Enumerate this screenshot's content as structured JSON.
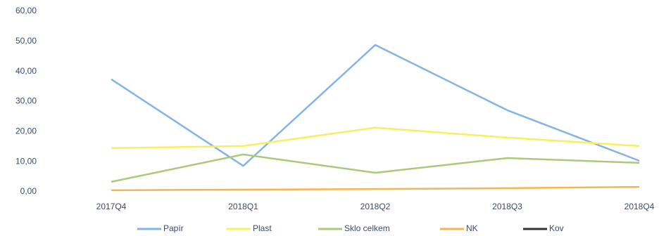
{
  "chart_data": {
    "type": "line",
    "categories": [
      "2017Q4",
      "2018Q1",
      "2018Q2",
      "2018Q3",
      "2018Q4"
    ],
    "series": [
      {
        "name": "Papír",
        "color": "#85b3e6",
        "values": [
          37.4,
          8.6,
          48.8,
          27.1,
          10.3
        ]
      },
      {
        "name": "Plast",
        "color": "#f6ef5e",
        "values": [
          14.5,
          15.2,
          21.3,
          18.0,
          15.2
        ]
      },
      {
        "name": "Sklo celkem",
        "color": "#abc97c",
        "values": [
          3.3,
          12.4,
          6.3,
          11.2,
          9.6
        ]
      },
      {
        "name": "NK",
        "color": "#f5b650",
        "values": [
          0.5,
          0.7,
          0.9,
          1.2,
          1.6
        ]
      },
      {
        "name": "Kov",
        "color": "#333333",
        "values": [
          null,
          null,
          null,
          null,
          null
        ]
      }
    ],
    "ylim": [
      0,
      60
    ],
    "yticks": [
      {
        "value": 0,
        "label": "0,00"
      },
      {
        "value": 10,
        "label": "10,00"
      },
      {
        "value": 20,
        "label": "20,00"
      },
      {
        "value": 30,
        "label": "30,00"
      },
      {
        "value": 40,
        "label": "40,00"
      },
      {
        "value": 50,
        "label": "50,00"
      },
      {
        "value": 60,
        "label": "60,00"
      }
    ],
    "grid": false
  }
}
